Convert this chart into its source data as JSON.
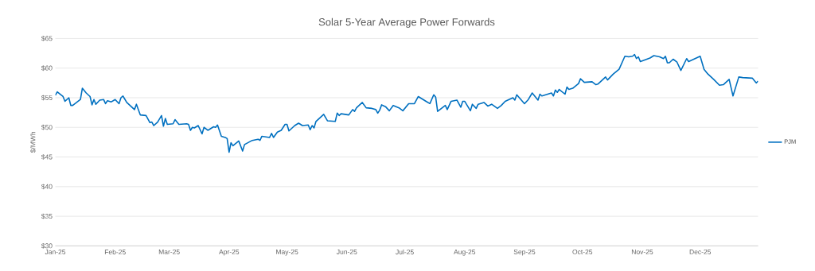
{
  "chart_data": {
    "type": "line",
    "title": "Solar 5-Year Average Power Forwards",
    "ylabel": "$/MWh",
    "x": [
      "2025-01-01",
      "2025-01-02",
      "2025-01-05",
      "2025-01-06",
      "2025-01-08",
      "2025-01-09",
      "2025-01-10",
      "2025-01-14",
      "2025-01-15",
      "2025-01-17",
      "2025-01-19",
      "2025-01-20",
      "2025-01-21",
      "2025-01-22",
      "2025-01-24",
      "2025-01-26",
      "2025-01-27",
      "2025-01-28",
      "2025-01-30",
      "2025-02-01",
      "2025-02-03",
      "2025-02-04",
      "2025-02-05",
      "2025-02-07",
      "2025-02-11",
      "2025-02-12",
      "2025-02-14",
      "2025-02-17",
      "2025-02-19",
      "2025-02-20",
      "2025-02-21",
      "2025-02-23",
      "2025-02-25",
      "2025-02-26",
      "2025-02-27",
      "2025-02-28",
      "2025-03-03",
      "2025-03-04",
      "2025-03-06",
      "2025-03-10",
      "2025-03-11",
      "2025-03-12",
      "2025-03-13",
      "2025-03-14",
      "2025-03-16",
      "2025-03-18",
      "2025-03-19",
      "2025-03-21",
      "2025-03-24",
      "2025-03-25",
      "2025-03-26",
      "2025-03-28",
      "2025-03-30",
      "2025-03-31",
      "2025-04-01",
      "2025-04-02",
      "2025-04-03",
      "2025-04-06",
      "2025-04-08",
      "2025-04-09",
      "2025-04-13",
      "2025-04-16",
      "2025-04-17",
      "2025-04-18",
      "2025-04-22",
      "2025-04-23",
      "2025-04-24",
      "2025-04-26",
      "2025-04-28",
      "2025-04-30",
      "2025-05-01",
      "2025-05-02",
      "2025-05-05",
      "2025-05-07",
      "2025-05-09",
      "2025-05-12",
      "2025-05-13",
      "2025-05-14",
      "2025-05-15",
      "2025-05-16",
      "2025-05-20",
      "2025-05-22",
      "2025-05-26",
      "2025-05-27",
      "2025-05-28",
      "2025-05-29",
      "2025-06-02",
      "2025-06-04",
      "2025-06-05",
      "2025-06-06",
      "2025-06-09",
      "2025-06-11",
      "2025-06-14",
      "2025-06-16",
      "2025-06-17",
      "2025-06-18",
      "2025-06-19",
      "2025-06-21",
      "2025-06-23",
      "2025-06-25",
      "2025-06-28",
      "2025-06-30",
      "2025-07-03",
      "2025-07-06",
      "2025-07-08",
      "2025-07-12",
      "2025-07-14",
      "2025-07-16",
      "2025-07-17",
      "2025-07-18",
      "2025-07-22",
      "2025-07-23",
      "2025-07-25",
      "2025-07-28",
      "2025-07-30",
      "2025-07-31",
      "2025-08-01",
      "2025-08-04",
      "2025-08-05",
      "2025-08-07",
      "2025-08-08",
      "2025-08-11",
      "2025-08-13",
      "2025-08-15",
      "2025-08-18",
      "2025-08-20",
      "2025-08-22",
      "2025-08-26",
      "2025-08-27",
      "2025-08-28",
      "2025-09-01",
      "2025-09-03",
      "2025-09-05",
      "2025-09-08",
      "2025-09-09",
      "2025-09-10",
      "2025-09-15",
      "2025-09-16",
      "2025-09-17",
      "2025-09-18",
      "2025-09-19",
      "2025-09-22",
      "2025-09-23",
      "2025-09-24",
      "2025-09-26",
      "2025-09-29",
      "2025-09-30",
      "2025-10-02",
      "2025-10-06",
      "2025-10-08",
      "2025-10-09",
      "2025-10-13",
      "2025-10-14",
      "2025-10-17",
      "2025-10-20",
      "2025-10-23",
      "2025-10-25",
      "2025-10-27",
      "2025-10-28",
      "2025-10-29",
      "2025-10-30",
      "2025-10-31",
      "2025-11-05",
      "2025-11-07",
      "2025-11-10",
      "2025-11-12",
      "2025-11-13",
      "2025-11-14",
      "2025-11-15",
      "2025-11-17",
      "2025-11-19",
      "2025-11-21",
      "2025-11-24",
      "2025-11-25",
      "2025-12-01",
      "2025-12-03",
      "2025-12-05",
      "2025-12-08",
      "2025-12-11",
      "2025-12-13",
      "2025-12-16",
      "2025-12-18",
      "2025-12-21",
      "2025-12-23",
      "2025-12-28",
      "2025-12-30",
      "2025-12-31"
    ],
    "series": [
      {
        "name": "PJM",
        "color": "#0070c0",
        "values": [
          55.4,
          56.0,
          55.2,
          54.4,
          55.0,
          53.7,
          53.7,
          54.7,
          56.6,
          55.8,
          55.2,
          53.8,
          54.7,
          53.9,
          54.6,
          54.7,
          54.0,
          54.5,
          54.3,
          54.7,
          54.0,
          55.0,
          55.3,
          54.2,
          53.0,
          53.9,
          52.1,
          52.0,
          50.8,
          50.9,
          50.3,
          50.9,
          52.0,
          50.2,
          51.5,
          50.5,
          50.6,
          51.3,
          50.5,
          50.6,
          50.5,
          49.5,
          50.0,
          49.9,
          50.3,
          48.9,
          50.0,
          49.5,
          50.1,
          50.0,
          50.4,
          48.5,
          48.3,
          48.1,
          45.8,
          47.4,
          46.9,
          47.7,
          46.0,
          47.1,
          47.8,
          48.0,
          47.8,
          48.5,
          48.3,
          49.0,
          48.3,
          49.2,
          49.5,
          50.5,
          50.5,
          49.4,
          50.3,
          50.7,
          50.3,
          50.4,
          49.6,
          50.3,
          49.9,
          51.0,
          52.2,
          51.1,
          51.0,
          52.4,
          52.0,
          52.3,
          52.1,
          53.0,
          52.7,
          53.3,
          54.2,
          53.3,
          53.2,
          53.0,
          52.4,
          52.9,
          53.8,
          53.5,
          52.8,
          53.7,
          53.3,
          52.8,
          54.0,
          54.0,
          55.2,
          54.4,
          54.0,
          55.5,
          55.1,
          52.7,
          53.7,
          53.0,
          54.4,
          54.6,
          53.4,
          54.4,
          54.4,
          52.8,
          53.9,
          53.2,
          53.9,
          54.2,
          53.6,
          53.9,
          53.2,
          53.7,
          54.4,
          55.0,
          54.6,
          55.5,
          54.0,
          54.7,
          55.8,
          54.6,
          55.6,
          55.3,
          55.8,
          55.3,
          56.3,
          55.9,
          56.4,
          55.6,
          56.8,
          56.4,
          56.6,
          57.4,
          58.2,
          57.6,
          57.7,
          57.2,
          57.3,
          58.5,
          58.0,
          59.0,
          59.8,
          62.0,
          61.9,
          62.0,
          62.3,
          61.6,
          61.9,
          61.1,
          61.7,
          62.1,
          61.9,
          61.6,
          62.0,
          60.9,
          60.9,
          61.5,
          61.0,
          59.6,
          61.6,
          61.1,
          62.0,
          59.8,
          59.0,
          58.1,
          57.1,
          57.2,
          58.1,
          55.3,
          58.5,
          58.4,
          58.3,
          57.5,
          57.8
        ]
      }
    ],
    "xlim": [
      "2025-01-01",
      "2025-12-31"
    ],
    "xticks": [
      {
        "value": "2025-01-01",
        "label": "Jan-25"
      },
      {
        "value": "2025-02-01",
        "label": "Feb-25"
      },
      {
        "value": "2025-03-01",
        "label": "Mar-25"
      },
      {
        "value": "2025-04-01",
        "label": "Apr-25"
      },
      {
        "value": "2025-05-01",
        "label": "May-25"
      },
      {
        "value": "2025-06-01",
        "label": "Jun-25"
      },
      {
        "value": "2025-07-01",
        "label": "Jul-25"
      },
      {
        "value": "2025-08-01",
        "label": "Aug-25"
      },
      {
        "value": "2025-09-01",
        "label": "Sep-25"
      },
      {
        "value": "2025-10-01",
        "label": "Oct-25"
      },
      {
        "value": "2025-11-01",
        "label": "Nov-25"
      },
      {
        "value": "2025-12-01",
        "label": "Dec-25"
      }
    ],
    "ylim": [
      30,
      65
    ],
    "yticks": [
      {
        "value": 30,
        "label": "$30"
      },
      {
        "value": 35,
        "label": "$35"
      },
      {
        "value": 40,
        "label": "$40"
      },
      {
        "value": 45,
        "label": "$45"
      },
      {
        "value": 50,
        "label": "$50"
      },
      {
        "value": 55,
        "label": "$55"
      },
      {
        "value": 60,
        "label": "$60"
      },
      {
        "value": 65,
        "label": "$65"
      }
    ],
    "grid": "y",
    "legend": "right",
    "marker": "none",
    "line_style": "solid"
  }
}
